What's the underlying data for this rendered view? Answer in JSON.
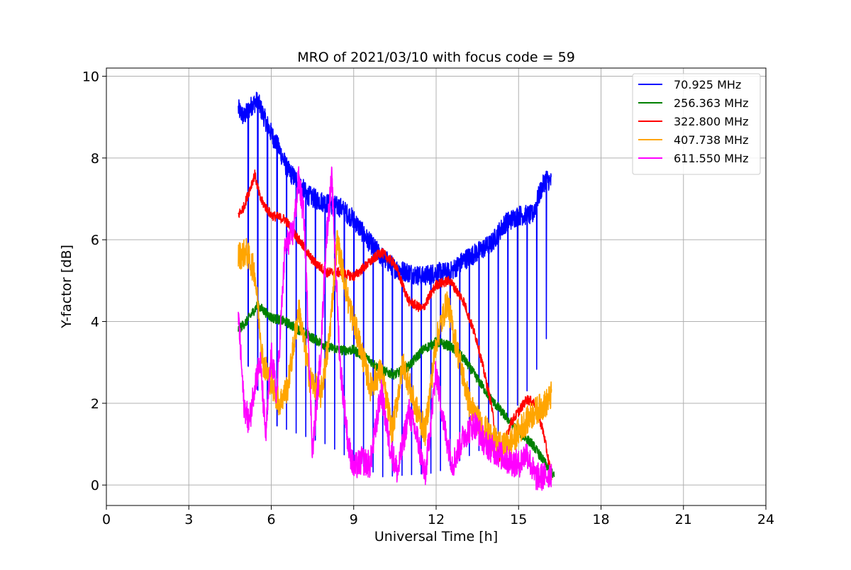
{
  "chart_data": {
    "type": "line",
    "title": "MRO of 2021/03/10 with focus code = 59",
    "xlabel": "Universal Time [h]",
    "ylabel": "Y-factor [dB]",
    "xlim": [
      0,
      24
    ],
    "ylim": [
      -0.5,
      10.2
    ],
    "xticks": [
      0,
      3,
      6,
      9,
      12,
      15,
      18,
      21,
      24
    ],
    "yticks": [
      0,
      2,
      4,
      6,
      8,
      10
    ],
    "xtick_labels": [
      "0",
      "3",
      "6",
      "9",
      "12",
      "15",
      "18",
      "21",
      "24"
    ],
    "ytick_labels": [
      "0",
      "2",
      "4",
      "6",
      "8",
      "10"
    ],
    "grid": true,
    "legend_position": "top-right",
    "series": [
      {
        "name": "70.925 MHz",
        "color": "#0000ff",
        "style": "dips",
        "dip_period_h": 0.35,
        "dip_floor": [
          [
            4.8,
            3.5
          ],
          [
            6.0,
            1.5
          ],
          [
            8.0,
            1.0
          ],
          [
            10.0,
            0.2
          ],
          [
            12.0,
            0.3
          ],
          [
            14.0,
            1.0
          ],
          [
            15.5,
            2.5
          ],
          [
            16.2,
            4.0
          ]
        ],
        "x": [
          4.8,
          5.0,
          5.3,
          5.5,
          5.8,
          6.0,
          6.3,
          6.6,
          7.0,
          7.3,
          7.6,
          8.0,
          8.5,
          9.0,
          9.5,
          10.0,
          10.5,
          11.0,
          11.5,
          12.0,
          12.5,
          13.0,
          13.5,
          14.0,
          14.5,
          15.0,
          15.5,
          15.8,
          16.0,
          16.2
        ],
        "y": [
          9.2,
          9.0,
          9.3,
          9.4,
          8.9,
          8.6,
          8.2,
          7.7,
          7.4,
          7.1,
          7.0,
          6.9,
          6.8,
          6.5,
          6.0,
          5.6,
          5.3,
          5.2,
          5.1,
          5.2,
          5.2,
          5.5,
          5.7,
          5.9,
          6.4,
          6.6,
          6.6,
          7.2,
          7.5,
          7.4
        ]
      },
      {
        "name": "256.363 MHz",
        "color": "#008000",
        "style": "smooth",
        "x": [
          4.8,
          5.1,
          5.5,
          6.0,
          6.5,
          7.0,
          7.5,
          8.0,
          8.5,
          9.0,
          9.5,
          10.0,
          10.5,
          11.0,
          11.5,
          12.0,
          12.5,
          13.0,
          13.5,
          14.0,
          14.5,
          15.0,
          15.5,
          16.0,
          16.3
        ],
        "y": [
          3.8,
          4.0,
          4.4,
          4.1,
          4.0,
          3.8,
          3.6,
          3.4,
          3.3,
          3.3,
          3.1,
          2.8,
          2.7,
          2.9,
          3.3,
          3.5,
          3.4,
          3.1,
          2.6,
          2.1,
          1.7,
          1.3,
          1.0,
          0.5,
          0.2
        ]
      },
      {
        "name": "322.800 MHz",
        "color": "#ff0000",
        "style": "smooth",
        "x": [
          4.8,
          5.0,
          5.2,
          5.4,
          5.6,
          6.0,
          6.5,
          7.0,
          7.5,
          8.0,
          8.5,
          9.0,
          9.5,
          10.0,
          10.5,
          11.0,
          11.5,
          12.0,
          12.5,
          13.0,
          13.5,
          14.0,
          14.3,
          14.7,
          15.0,
          15.3,
          15.6,
          15.9,
          16.2
        ],
        "y": [
          6.6,
          6.8,
          7.2,
          7.6,
          7.0,
          6.6,
          6.5,
          6.0,
          5.5,
          5.2,
          5.2,
          5.1,
          5.4,
          5.7,
          5.4,
          4.5,
          4.3,
          4.9,
          5.0,
          4.5,
          3.5,
          2.0,
          0.6,
          1.5,
          1.8,
          2.1,
          2.0,
          1.3,
          0.2
        ]
      },
      {
        "name": "407.738 MHz",
        "color": "#ffa500",
        "style": "noisy",
        "x": [
          4.8,
          5.1,
          5.4,
          5.7,
          6.0,
          6.3,
          6.6,
          7.0,
          7.4,
          7.8,
          8.1,
          8.4,
          8.8,
          9.2,
          9.6,
          10.0,
          10.4,
          10.8,
          11.2,
          11.6,
          12.0,
          12.4,
          12.8,
          13.2,
          13.6,
          14.0,
          14.4,
          14.8,
          15.2,
          15.6,
          16.0,
          16.2
        ],
        "y": [
          5.6,
          5.7,
          5.2,
          3.0,
          2.5,
          2.0,
          2.4,
          4.3,
          2.6,
          2.2,
          3.5,
          6.0,
          4.5,
          3.5,
          2.4,
          2.8,
          1.3,
          3.0,
          2.0,
          1.3,
          3.5,
          4.5,
          3.2,
          2.0,
          1.5,
          1.2,
          0.9,
          1.1,
          1.5,
          1.8,
          2.0,
          2.2
        ]
      },
      {
        "name": "611.550 MHz",
        "color": "#ff00ff",
        "style": "noisy",
        "x": [
          4.8,
          5.0,
          5.2,
          5.4,
          5.6,
          5.8,
          6.0,
          6.2,
          6.5,
          6.8,
          7.0,
          7.2,
          7.5,
          7.8,
          8.0,
          8.2,
          8.5,
          8.8,
          9.0,
          9.3,
          9.6,
          10.0,
          10.3,
          10.6,
          11.0,
          11.3,
          11.6,
          12.0,
          12.3,
          12.6,
          13.0,
          13.4,
          13.8,
          14.2,
          14.6,
          15.0,
          15.3,
          15.6,
          15.9,
          16.2
        ],
        "y": [
          4.2,
          2.0,
          1.5,
          2.5,
          3.0,
          1.2,
          3.2,
          2.2,
          5.8,
          6.2,
          7.5,
          6.5,
          0.8,
          3.2,
          6.0,
          7.5,
          3.0,
          1.0,
          0.4,
          0.6,
          0.5,
          2.3,
          1.0,
          0.3,
          1.8,
          1.2,
          0.2,
          2.8,
          1.4,
          0.5,
          1.2,
          1.5,
          1.0,
          0.8,
          0.6,
          0.5,
          0.8,
          0.2,
          0.2,
          0.3
        ]
      }
    ]
  }
}
